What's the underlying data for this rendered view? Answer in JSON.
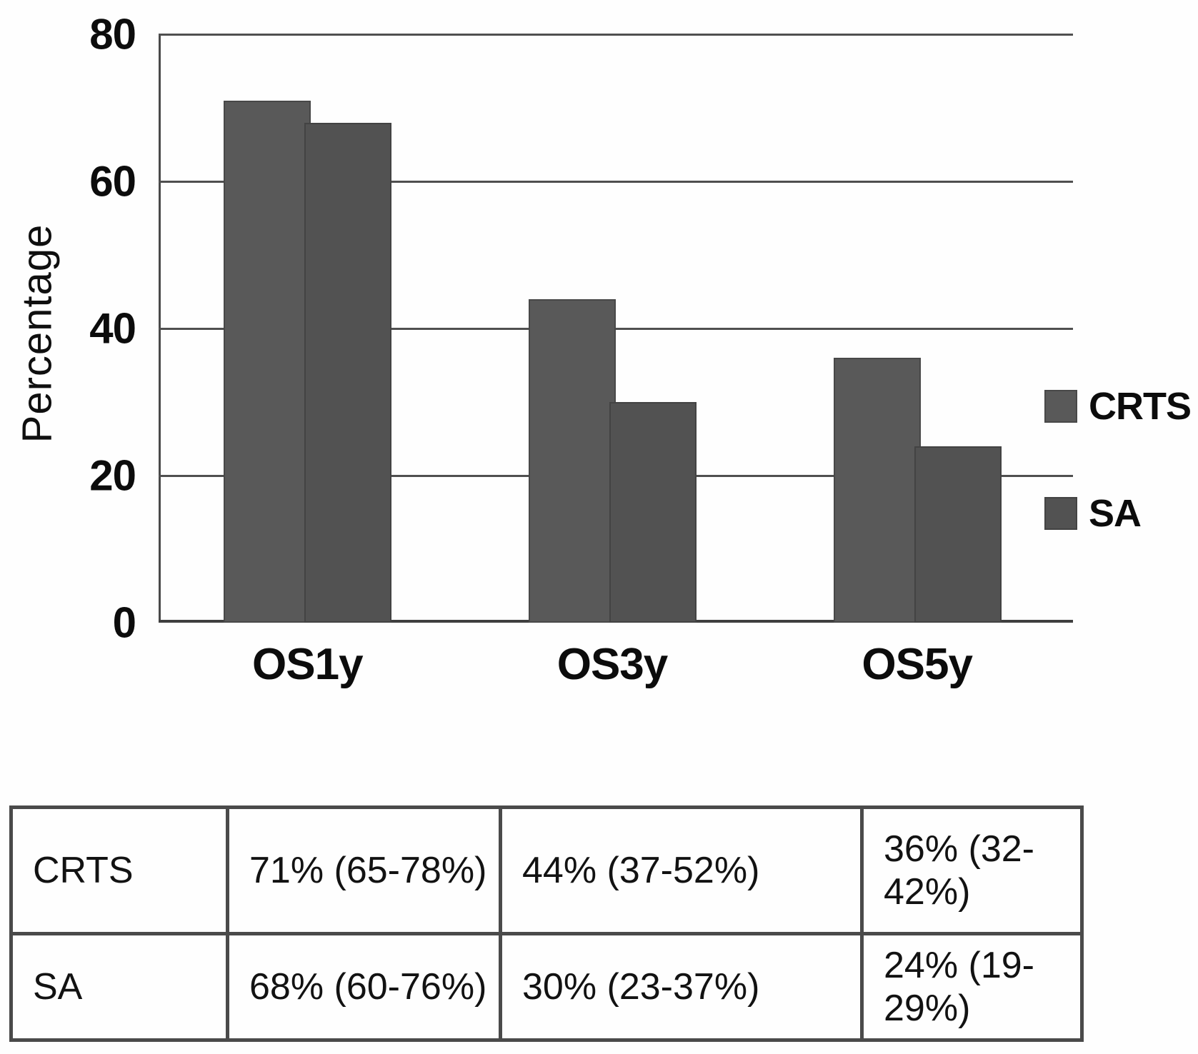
{
  "chart_data": {
    "type": "bar",
    "categories": [
      "OS1y",
      "OS3y",
      "OS5y"
    ],
    "series": [
      {
        "name": "CRTS",
        "values": [
          71,
          44,
          36
        ],
        "color": "#595959"
      },
      {
        "name": "SA",
        "values": [
          68,
          30,
          24
        ],
        "color": "#525252"
      }
    ],
    "title": "",
    "xlabel": "",
    "ylabel": "Percentage",
    "ylim": [
      0,
      80
    ],
    "yticks": [
      0,
      20,
      40,
      60,
      80
    ],
    "grid": true,
    "legend_position": "right",
    "gridline_color": "#4f4f4f",
    "bar_overlap": true
  },
  "table": {
    "rows": [
      {
        "label": "CRTS",
        "cells": [
          "71% (65-78%)",
          "44% (37-52%)",
          "36% (32-42%)"
        ]
      },
      {
        "label": "SA",
        "cells": [
          "68% (60-76%)",
          "30% (23-37%)",
          "24% (19-29%)"
        ]
      }
    ]
  }
}
